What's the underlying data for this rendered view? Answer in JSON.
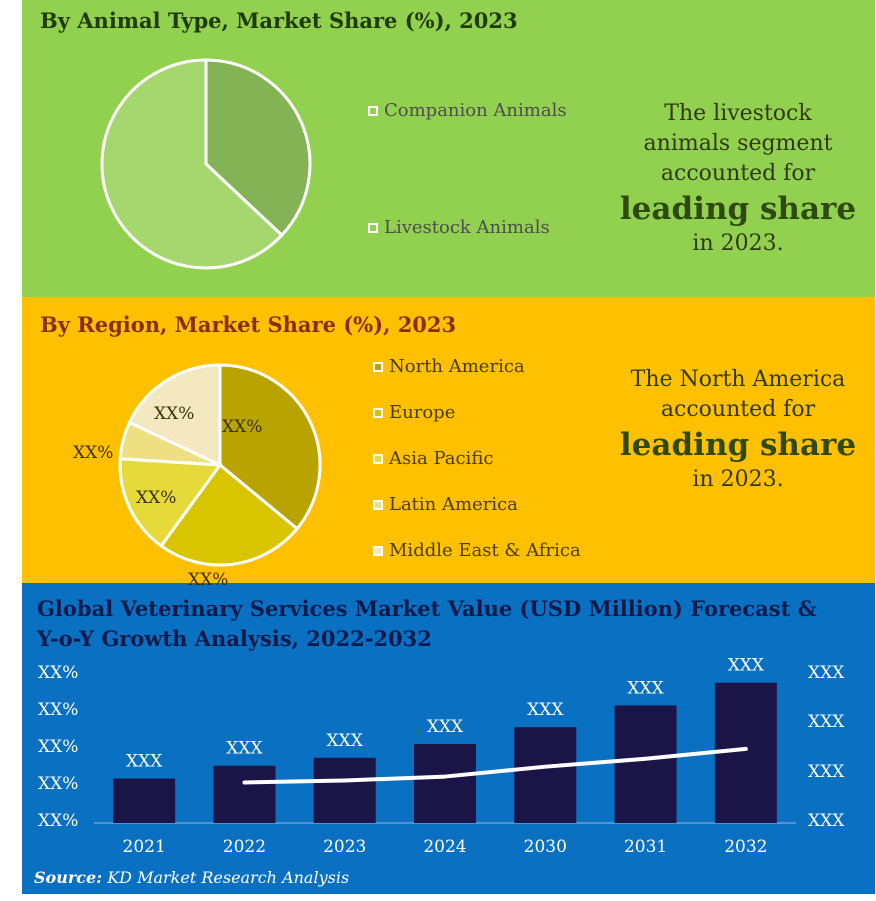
{
  "chart_data": [
    {
      "type": "pie",
      "title": "By Animal Type, Market Share (%), 2023",
      "labels": [
        "Companion Animals",
        "Livestock Animals"
      ],
      "values": [
        37,
        63
      ],
      "colors": [
        "#84b356",
        "#a6d76f"
      ],
      "legend_position": "right",
      "callout": [
        "The livestock",
        "animals segment",
        "accounted for",
        "leading share",
        "in 2023."
      ]
    },
    {
      "type": "pie",
      "title": "By Region, Market Share (%), 2023",
      "labels": [
        "North America",
        "Europe",
        "Asia Pacific",
        "Latin America",
        "Middle East & Africa"
      ],
      "values": [
        36,
        24,
        16,
        6,
        18
      ],
      "data_labels": [
        "XX%",
        "XX%",
        "XX%",
        "XX%",
        "XX%"
      ],
      "colors": [
        "#b8a300",
        "#d8c500",
        "#e6d93a",
        "#eedf80",
        "#f3e8bf"
      ],
      "legend_position": "right",
      "callout": [
        "The North America",
        "accounted for",
        "leading share",
        "in 2023."
      ]
    },
    {
      "type": "bar",
      "title": "Global Veterinary Services Market Value (USD Million) Forecast & Y-o-Y Growth Analysis, 2022-2032",
      "categories": [
        "2021",
        "2022",
        "2023",
        "2024",
        "2030",
        "2031",
        "2032"
      ],
      "values": [
        45,
        58,
        66,
        80,
        97,
        119,
        142
      ],
      "data_labels": [
        "XXX",
        "XXX",
        "XXX",
        "XXX",
        "XXX",
        "XXX",
        "XXX"
      ],
      "ylim": [
        0,
        165
      ],
      "left_ticks": [
        "XX%",
        "XX%",
        "XX%",
        "XX%",
        "XX%"
      ],
      "right_ticks": [
        "XXX",
        "XXX",
        "XXX",
        "XXX"
      ],
      "growth_line": {
        "x": [
          "2022",
          "2023",
          "2024",
          "2030",
          "2031",
          "2032"
        ],
        "values": [
          41,
          43,
          47,
          57,
          65,
          75
        ]
      },
      "bar_color": "#1b1446",
      "line_color": "#ffffff",
      "source_label": "Source:",
      "source_text": "KD Market Research Analysis"
    }
  ]
}
